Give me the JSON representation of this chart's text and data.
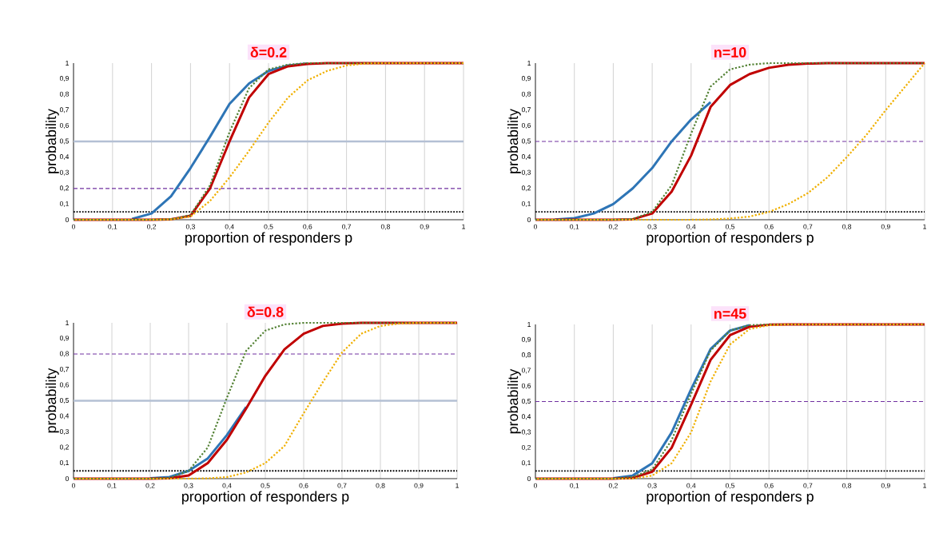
{
  "chart_data": [
    {
      "type": "line",
      "title": "δ=0.2",
      "xlabel": "proportion of responders p",
      "ylabel": "probability",
      "grid": "x",
      "x": [
        0,
        0.05,
        0.1,
        0.15,
        0.2,
        0.25,
        0.3,
        0.35,
        0.4,
        0.45,
        0.5,
        0.55,
        0.6,
        0.65,
        0.7,
        0.75,
        0.8,
        0.85,
        0.9,
        0.95,
        1
      ],
      "xlim": [
        0,
        1
      ],
      "ylim": [
        0,
        1
      ],
      "xticks": [
        0,
        {
          "value": 0.1,
          "label": "0,1"
        },
        {
          "value": 0.2,
          "label": "0,2"
        },
        {
          "value": 0.3,
          "label": "0,3"
        },
        {
          "value": 0.4,
          "label": "0,4"
        },
        {
          "value": 0.5,
          "label": "0,5"
        },
        {
          "value": 0.6,
          "label": "0,6"
        },
        {
          "value": 0.7,
          "label": "0,7"
        },
        {
          "value": 0.8,
          "label": "0,8"
        },
        {
          "value": 0.9,
          "label": "0,9"
        },
        1
      ],
      "yticks": [
        0,
        {
          "value": 0.1,
          "label": "0,1"
        },
        {
          "value": 0.2,
          "label": "0,2"
        },
        {
          "value": 0.3,
          "label": "0,3"
        },
        {
          "value": 0.4,
          "label": "0,4"
        },
        {
          "value": 0.5,
          "label": "0,5"
        },
        {
          "value": 0.6,
          "label": "0,6"
        },
        {
          "value": 0.7,
          "label": "0,7"
        },
        {
          "value": 0.8,
          "label": "0,8"
        },
        {
          "value": 0.9,
          "label": "0,9"
        },
        1
      ],
      "ref_lines": [
        {
          "axis": "y",
          "value": 0.05,
          "color": "#000000",
          "line_style": "dotted"
        },
        {
          "axis": "y",
          "value": 0.2,
          "color": "#7030a0",
          "line_style": "dashed"
        },
        {
          "axis": "y",
          "value": 0.5,
          "color": "#b4c0d4",
          "line_style": "solid"
        }
      ],
      "series": [
        {
          "color": "#2e75b6",
          "line_style": "solid",
          "values": [
            null,
            null,
            null,
            0.005,
            0.04,
            0.15,
            0.33,
            0.53,
            0.74,
            0.87,
            0.95,
            0.985,
            0.997,
            null,
            null,
            null,
            null,
            null,
            null,
            null,
            null
          ]
        },
        {
          "color": "#c00000",
          "line_style": "solid",
          "values": [
            0,
            0,
            0,
            0,
            0,
            0.003,
            0.025,
            0.2,
            0.5,
            0.78,
            0.93,
            0.98,
            0.995,
            1,
            1,
            1,
            1,
            1,
            1,
            1,
            1
          ]
        },
        {
          "color": "#548235",
          "line_style": "dotted",
          "values": [
            0,
            0,
            0,
            0,
            0,
            0.003,
            0.03,
            0.22,
            0.56,
            0.84,
            0.96,
            0.99,
            1,
            1,
            1,
            1,
            1,
            1,
            1,
            1,
            1
          ]
        },
        {
          "color": "#f0b000",
          "line_style": "dotted",
          "values": [
            0,
            0,
            0,
            0,
            0,
            0.002,
            0.02,
            0.12,
            0.27,
            0.44,
            0.62,
            0.78,
            0.89,
            0.95,
            0.985,
            0.998,
            1,
            1,
            1,
            1,
            1
          ]
        }
      ]
    },
    {
      "type": "line",
      "title": "n=10",
      "xlabel": "proportion of responders p",
      "ylabel": "probability",
      "grid": "x",
      "x": [
        0,
        0.05,
        0.1,
        0.15,
        0.2,
        0.25,
        0.3,
        0.35,
        0.4,
        0.45,
        0.5,
        0.55,
        0.6,
        0.65,
        0.7,
        0.75,
        0.8,
        0.85,
        0.9,
        0.95,
        1
      ],
      "xlim": [
        0,
        1
      ],
      "ylim": [
        0,
        1
      ],
      "xticks": [
        0,
        {
          "value": 0.1,
          "label": "0,1"
        },
        {
          "value": 0.2,
          "label": "0,2"
        },
        {
          "value": 0.3,
          "label": "0,3"
        },
        {
          "value": 0.4,
          "label": "0,4"
        },
        {
          "value": 0.5,
          "label": "0,5"
        },
        {
          "value": 0.6,
          "label": "0,6"
        },
        {
          "value": 0.7,
          "label": "0,7"
        },
        {
          "value": 0.8,
          "label": "0,8"
        },
        {
          "value": 0.9,
          "label": "0,9"
        },
        1
      ],
      "yticks": [
        0,
        {
          "value": 0.1,
          "label": "0,1"
        },
        {
          "value": 0.2,
          "label": "0,2"
        },
        {
          "value": 0.3,
          "label": "0,3"
        },
        {
          "value": 0.4,
          "label": "0,4"
        },
        {
          "value": 0.5,
          "label": "0,5"
        },
        {
          "value": 0.6,
          "label": "0,6"
        },
        {
          "value": 0.7,
          "label": "0,7"
        },
        {
          "value": 0.8,
          "label": "0,8"
        },
        {
          "value": 0.9,
          "label": "0,9"
        },
        1
      ],
      "ref_lines": [
        {
          "axis": "y",
          "value": 0.05,
          "color": "#000000",
          "line_style": "dotted"
        },
        {
          "axis": "y",
          "value": 0.5,
          "color": "#7030a0",
          "line_style": "dashed"
        }
      ],
      "series": [
        {
          "color": "#2e75b6",
          "line_style": "solid",
          "values": [
            null,
            0.001,
            0.01,
            0.04,
            0.1,
            0.2,
            0.33,
            0.5,
            0.64,
            0.75,
            null,
            null,
            null,
            null,
            null,
            null,
            null,
            null,
            null,
            null,
            null
          ]
        },
        {
          "color": "#c00000",
          "line_style": "solid",
          "values": [
            0,
            0,
            0,
            0,
            0,
            0.003,
            0.04,
            0.18,
            0.41,
            0.72,
            0.86,
            0.93,
            0.97,
            0.99,
            0.997,
            1,
            1,
            1,
            1,
            1,
            1
          ]
        },
        {
          "color": "#548235",
          "line_style": "dotted",
          "values": [
            0,
            0,
            0,
            0,
            0,
            0.005,
            0.05,
            0.22,
            0.55,
            0.85,
            0.96,
            0.99,
            1,
            1,
            1,
            1,
            1,
            1,
            1,
            1,
            1
          ]
        },
        {
          "color": "#f0b000",
          "line_style": "dotted",
          "values": [
            0,
            0,
            0,
            0,
            0,
            0,
            0,
            0,
            0,
            0.002,
            0.008,
            0.02,
            0.05,
            0.1,
            0.17,
            0.27,
            0.4,
            0.54,
            0.7,
            0.85,
            1
          ]
        }
      ]
    },
    {
      "type": "line",
      "title": "δ=0.8",
      "xlabel": "proportion of responders p",
      "ylabel": "probability",
      "grid": "x",
      "x": [
        0,
        0.05,
        0.1,
        0.15,
        0.2,
        0.25,
        0.3,
        0.35,
        0.4,
        0.45,
        0.5,
        0.55,
        0.6,
        0.65,
        0.7,
        0.75,
        0.8,
        0.85,
        0.9,
        0.95,
        1
      ],
      "xlim": [
        0,
        1
      ],
      "ylim": [
        0,
        1
      ],
      "xticks": [
        0,
        {
          "value": 0.1,
          "label": "0,1"
        },
        {
          "value": 0.2,
          "label": "0,2"
        },
        {
          "value": 0.3,
          "label": "0,3"
        },
        {
          "value": 0.4,
          "label": "0,4"
        },
        {
          "value": 0.5,
          "label": "0,5"
        },
        {
          "value": 0.6,
          "label": "0,6"
        },
        {
          "value": 0.7,
          "label": "0,7"
        },
        {
          "value": 0.8,
          "label": "0,8"
        },
        {
          "value": 0.9,
          "label": "0,9"
        },
        1
      ],
      "yticks": [
        0,
        {
          "value": 0.1,
          "label": "0,1"
        },
        {
          "value": 0.2,
          "label": "0,2"
        },
        {
          "value": 0.3,
          "label": "0,3"
        },
        {
          "value": 0.4,
          "label": "0,4"
        },
        {
          "value": 0.5,
          "label": "0,5"
        },
        {
          "value": 0.6,
          "label": "0,6"
        },
        {
          "value": 0.7,
          "label": "0,7"
        },
        {
          "value": 0.8,
          "label": "0,8"
        },
        {
          "value": 0.9,
          "label": "0,9"
        },
        1
      ],
      "ref_lines": [
        {
          "axis": "y",
          "value": 0.05,
          "color": "#000000",
          "line_style": "dotted"
        },
        {
          "axis": "y",
          "value": 0.8,
          "color": "#7030a0",
          "line_style": "dashed"
        },
        {
          "axis": "y",
          "value": 0.5,
          "color": "#b4c0d4",
          "line_style": "solid"
        }
      ],
      "series": [
        {
          "color": "#2e75b6",
          "line_style": "solid",
          "values": [
            null,
            null,
            null,
            null,
            0.002,
            0.01,
            0.05,
            0.13,
            0.28,
            0.46,
            null,
            null,
            null,
            null,
            null,
            null,
            null,
            null,
            null,
            null,
            null
          ]
        },
        {
          "color": "#c00000",
          "line_style": "solid",
          "values": [
            0,
            0,
            0,
            0,
            0,
            0.003,
            0.02,
            0.1,
            0.25,
            0.45,
            0.66,
            0.83,
            0.93,
            0.98,
            0.995,
            1,
            1,
            1,
            1,
            1,
            1
          ]
        },
        {
          "color": "#548235",
          "line_style": "dotted",
          "values": [
            0,
            0,
            0,
            0,
            0,
            0.005,
            0.05,
            0.2,
            0.52,
            0.82,
            0.95,
            0.99,
            1,
            1,
            1,
            1,
            1,
            1,
            1,
            1,
            1
          ]
        },
        {
          "color": "#f0b000",
          "line_style": "dotted",
          "values": [
            0,
            0,
            0,
            0,
            0,
            0,
            0,
            0.002,
            0.01,
            0.04,
            0.1,
            0.21,
            0.42,
            0.62,
            0.81,
            0.93,
            0.98,
            0.995,
            1,
            1,
            1
          ]
        }
      ]
    },
    {
      "type": "line",
      "title": "n=45",
      "xlabel": "proportion of responders p",
      "ylabel": "probability",
      "grid": "x",
      "x": [
        0,
        0.05,
        0.1,
        0.15,
        0.2,
        0.25,
        0.3,
        0.35,
        0.4,
        0.45,
        0.5,
        0.55,
        0.6,
        0.65,
        0.7,
        0.75,
        0.8,
        0.85,
        0.9,
        0.95,
        1
      ],
      "xlim": [
        0,
        1
      ],
      "ylim": [
        0,
        1
      ],
      "xticks": [
        0,
        {
          "value": 0.1,
          "label": "0,1"
        },
        {
          "value": 0.2,
          "label": "0,2"
        },
        {
          "value": 0.3,
          "label": "0,3"
        },
        {
          "value": 0.4,
          "label": "0,4"
        },
        {
          "value": 0.5,
          "label": "0,5"
        },
        {
          "value": 0.6,
          "label": "0,6"
        },
        {
          "value": 0.7,
          "label": "0,7"
        },
        {
          "value": 0.8,
          "label": "0,8"
        },
        {
          "value": 0.9,
          "label": "0,9"
        },
        1
      ],
      "yticks": [
        0,
        {
          "value": 0.1,
          "label": "0,1"
        },
        {
          "value": 0.2,
          "label": "0,2"
        },
        {
          "value": 0.3,
          "label": "0,3"
        },
        {
          "value": 0.4,
          "label": "0,4"
        },
        {
          "value": 0.5,
          "label": "0,5"
        },
        {
          "value": 0.6,
          "label": "0,6"
        },
        {
          "value": 0.7,
          "label": "0,7"
        },
        {
          "value": 0.8,
          "label": "0,8"
        },
        {
          "value": 0.9,
          "label": "0,9"
        },
        1
      ],
      "ref_lines": [
        {
          "axis": "y",
          "value": 0.05,
          "color": "#000000",
          "line_style": "dotted"
        },
        {
          "axis": "y",
          "value": 0.5,
          "color": "#7030a0",
          "line_style": "dashed"
        }
      ],
      "series": [
        {
          "color": "#2e75b6",
          "line_style": "solid",
          "values": [
            null,
            null,
            null,
            null,
            0.003,
            0.02,
            0.1,
            0.3,
            0.58,
            0.84,
            0.96,
            0.995,
            null,
            null,
            null,
            null,
            null,
            null,
            null,
            null,
            null
          ]
        },
        {
          "color": "#c00000",
          "line_style": "solid",
          "values": [
            0,
            0,
            0,
            0,
            0,
            0.005,
            0.045,
            0.2,
            0.48,
            0.77,
            0.93,
            0.985,
            0.998,
            1,
            1,
            1,
            1,
            1,
            1,
            1,
            1
          ]
        },
        {
          "color": "#548235",
          "line_style": "dotted",
          "values": [
            0,
            0,
            0,
            0,
            0,
            0.01,
            0.06,
            0.25,
            0.55,
            0.83,
            0.96,
            0.995,
            1,
            1,
            1,
            1,
            1,
            1,
            1,
            1,
            1
          ]
        },
        {
          "color": "#f0b000",
          "line_style": "dotted",
          "values": [
            0,
            0,
            0,
            0,
            0,
            0,
            0.02,
            0.1,
            0.3,
            0.63,
            0.87,
            0.97,
            0.995,
            1,
            1,
            1,
            1,
            1,
            1,
            1,
            1
          ]
        }
      ]
    }
  ]
}
